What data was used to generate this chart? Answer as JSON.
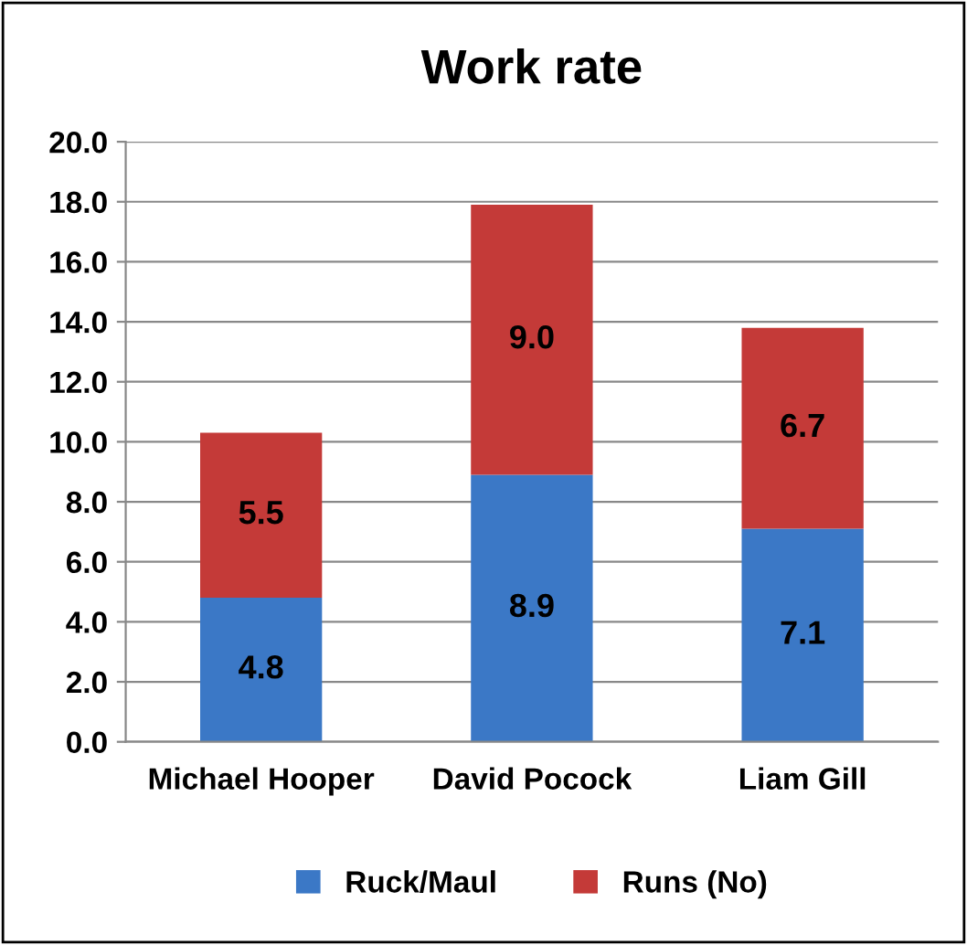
{
  "chart_data": {
    "type": "bar",
    "title": "Work rate",
    "stacked": true,
    "categories": [
      "Michael Hooper",
      "David Pocock",
      "Liam Gill"
    ],
    "series": [
      {
        "name": "Ruck/Maul",
        "color": "#3b78c6",
        "values": [
          4.8,
          8.9,
          7.1
        ],
        "value_labels": [
          "4.8",
          "8.9",
          "7.1"
        ]
      },
      {
        "name": "Runs (No)",
        "color": "#c43a38",
        "values": [
          5.5,
          9.0,
          6.7
        ],
        "value_labels": [
          "5.5",
          "9.0",
          "6.7"
        ]
      }
    ],
    "ylim": [
      0,
      20
    ],
    "yticks": [
      {
        "value": 0,
        "label": "0.0"
      },
      {
        "value": 2,
        "label": "2.0"
      },
      {
        "value": 4,
        "label": "4.0"
      },
      {
        "value": 6,
        "label": "6.0"
      },
      {
        "value": 8,
        "label": "8.0"
      },
      {
        "value": 10,
        "label": "10.0"
      },
      {
        "value": 12,
        "label": "12.0"
      },
      {
        "value": 14,
        "label": "14.0"
      },
      {
        "value": 16,
        "label": "16.0"
      },
      {
        "value": 18,
        "label": "18.0"
      },
      {
        "value": 20,
        "label": "20.0"
      }
    ],
    "grid": "y",
    "legend": "bottom"
  }
}
